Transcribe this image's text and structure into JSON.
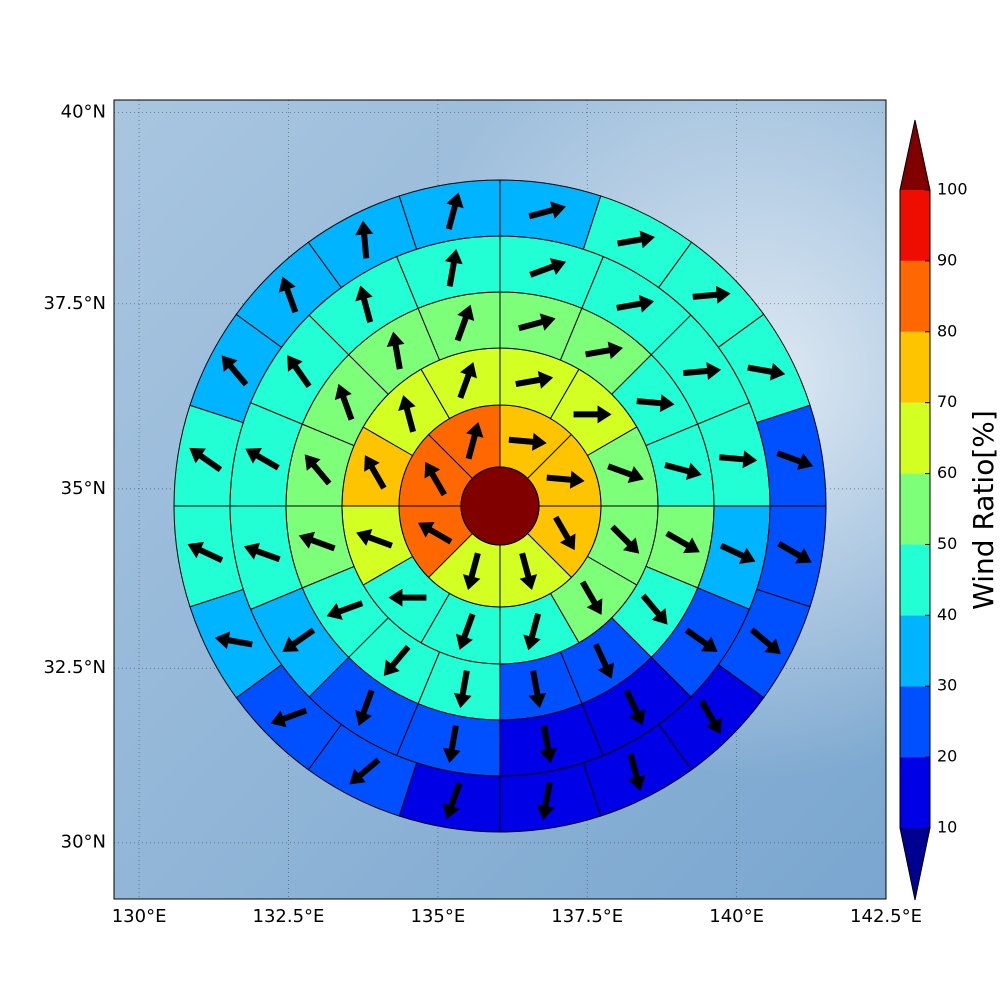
{
  "chart_data": {
    "type": "polar_map",
    "projection": "mercator",
    "xlim": [
      129.58,
      142.5
    ],
    "ylim": [
      29.18,
      40.16
    ],
    "xticks": [
      {
        "value": 130,
        "label": "130°E"
      },
      {
        "value": 132.5,
        "label": "132.5°E"
      },
      {
        "value": 135,
        "label": "135°E"
      },
      {
        "value": 137.5,
        "label": "137.5°E"
      },
      {
        "value": 140,
        "label": "140°E"
      },
      {
        "value": 142.5,
        "label": "142.5°E"
      }
    ],
    "yticks": [
      {
        "value": 30,
        "label": "30°N"
      },
      {
        "value": 32.5,
        "label": "32.5°N"
      },
      {
        "value": 35,
        "label": "35°N"
      },
      {
        "value": 37.5,
        "label": "37.5°N"
      },
      {
        "value": 40,
        "label": "40°N"
      }
    ],
    "grid": true,
    "colorbar": {
      "label": "Wind Ratio[%]",
      "ticks": [
        10,
        20,
        30,
        40,
        50,
        60,
        70,
        80,
        90,
        100
      ],
      "colors": [
        "#0000e6",
        "#0050ff",
        "#00b4ff",
        "#22ffd4",
        "#7dff7a",
        "#d4ff22",
        "#ffc400",
        "#ff6800",
        "#ee0d00"
      ],
      "under_color": "#000090",
      "over_color": "#800000"
    },
    "center_value": 105,
    "rings": [
      {
        "values": [
          75,
          75,
          75,
          65,
          65,
          85,
          85,
          85
        ],
        "directions": [
          95,
          95,
          150,
          165,
          195,
          300,
          330,
          15
        ]
      },
      {
        "values": [
          65,
          65,
          55,
          55,
          55,
          45,
          45,
          45,
          65,
          75,
          65,
          65
        ],
        "directions": [
          80,
          90,
          110,
          135,
          150,
          195,
          200,
          270,
          290,
          330,
          345,
          20
        ]
      },
      {
        "values": [
          55,
          55,
          45,
          45,
          55,
          45,
          25,
          25,
          45,
          45,
          45,
          55,
          55,
          55,
          55,
          55
        ],
        "directions": [
          75,
          80,
          95,
          105,
          120,
          140,
          155,
          170,
          190,
          220,
          250,
          290,
          320,
          340,
          350,
          20
        ]
      },
      {
        "values": [
          45,
          45,
          45,
          45,
          35,
          25,
          15,
          15,
          25,
          25,
          35,
          45,
          45,
          45,
          45,
          45
        ],
        "directions": [
          70,
          80,
          85,
          95,
          115,
          125,
          155,
          170,
          190,
          200,
          235,
          290,
          300,
          325,
          345,
          10
        ]
      },
      {
        "values": [
          35,
          45,
          45,
          45,
          25,
          25,
          25,
          15,
          15,
          15,
          15,
          25,
          25,
          35,
          45,
          45,
          35,
          35,
          35,
          35
        ],
        "directions": [
          75,
          80,
          85,
          100,
          110,
          120,
          130,
          150,
          165,
          190,
          200,
          230,
          250,
          280,
          295,
          305,
          320,
          340,
          355,
          15
        ]
      }
    ]
  }
}
